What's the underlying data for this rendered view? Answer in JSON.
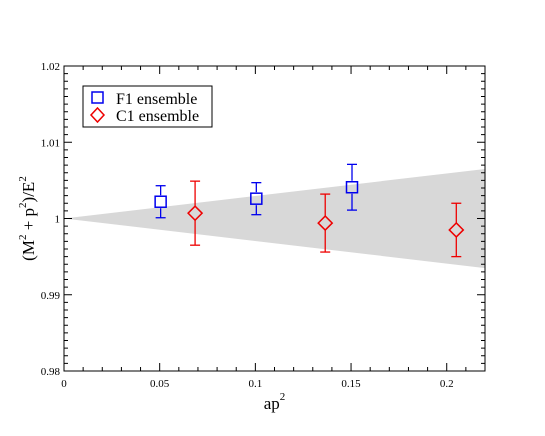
{
  "chart_data": {
    "type": "scatter",
    "title": "",
    "xlabel": {
      "base": "ap",
      "sup": "2"
    },
    "ylabel": {
      "p1": "(M",
      "s1": "2",
      "p2": " + p",
      "s2": "2",
      "p3": ")/E",
      "s3": "2"
    },
    "xlim": [
      0,
      0.22
    ],
    "ylim": [
      0.98,
      1.02
    ],
    "x_ticks": [
      {
        "value": 0,
        "label": "0"
      },
      {
        "value": 0.05,
        "label": "0.05"
      },
      {
        "value": 0.1,
        "label": "0.1"
      },
      {
        "value": 0.15,
        "label": "0.15"
      },
      {
        "value": 0.2,
        "label": "0.2"
      }
    ],
    "y_ticks": [
      {
        "value": 0.98,
        "label": "0.98"
      },
      {
        "value": 0.99,
        "label": "0.99"
      },
      {
        "value": 1.0,
        "label": "1"
      },
      {
        "value": 1.01,
        "label": "1.01"
      },
      {
        "value": 1.02,
        "label": "1.02"
      }
    ],
    "band": {
      "color": "#d8d8d8",
      "x": [
        0,
        0.22
      ],
      "upper": [
        1.0,
        1.0065
      ],
      "lower": [
        1.0,
        0.9935
      ]
    },
    "series": [
      {
        "name": "F1 ensemble",
        "color": "#0000ee",
        "marker": "square",
        "points": [
          {
            "x": 0.0505,
            "y": 1.0022,
            "yerr": 0.0021
          },
          {
            "x": 0.1005,
            "y": 1.0026,
            "yerr": 0.0021
          },
          {
            "x": 0.1505,
            "y": 1.0041,
            "yerr": 0.003
          }
        ]
      },
      {
        "name": "C1 ensemble",
        "color": "#ee0000",
        "marker": "diamond",
        "points": [
          {
            "x": 0.0685,
            "y": 1.0007,
            "yerr": 0.0042
          },
          {
            "x": 0.1365,
            "y": 0.9994,
            "yerr": 0.0038
          },
          {
            "x": 0.205,
            "y": 0.9985,
            "yerr": 0.0035
          }
        ]
      }
    ],
    "grid": false,
    "legend": "top-left"
  }
}
